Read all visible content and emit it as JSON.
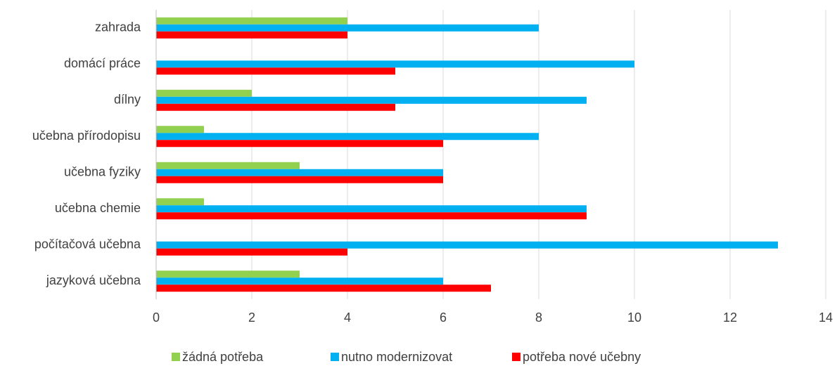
{
  "chart_data": {
    "type": "bar",
    "orientation": "horizontal",
    "categories": [
      "zahrada",
      "domácí práce",
      "dílny",
      "učebna přírodopisu",
      "učebna fyziky",
      "učebna chemie",
      "počítačová učebna",
      "jazyková učebna"
    ],
    "series": [
      {
        "name": "žádná potřeba",
        "color": "#92d050",
        "values": [
          4,
          0,
          2,
          1,
          3,
          1,
          0,
          3
        ]
      },
      {
        "name": "nutno modernizovat",
        "color": "#00b0f0",
        "values": [
          8,
          10,
          9,
          8,
          6,
          9,
          13,
          6
        ]
      },
      {
        "name": "potřeba nové učebny",
        "color": "#ff0000",
        "values": [
          4,
          5,
          5,
          6,
          6,
          9,
          4,
          7
        ]
      }
    ],
    "xlim": [
      0,
      14
    ],
    "xticks": [
      0,
      2,
      4,
      6,
      8,
      10,
      12,
      14
    ],
    "grid": true,
    "legend": "bottom"
  }
}
